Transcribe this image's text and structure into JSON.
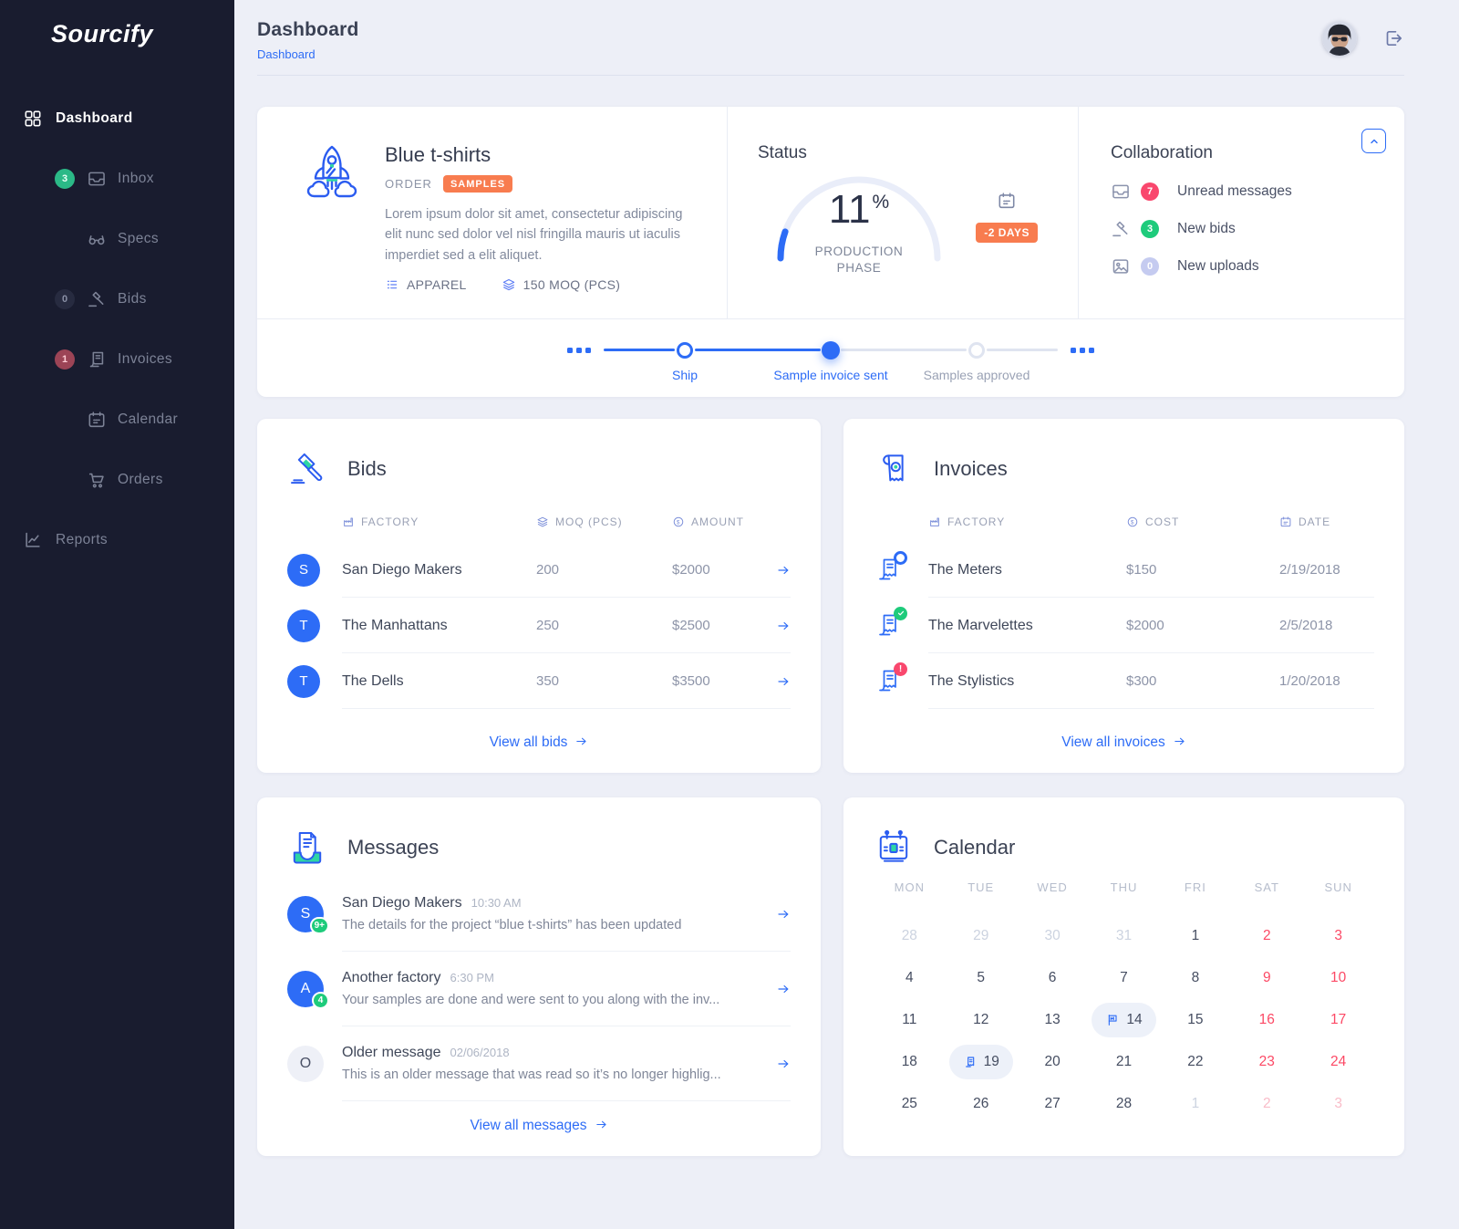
{
  "app": {
    "name": "Sourcify"
  },
  "header": {
    "title": "Dashboard",
    "breadcrumb": "Dashboard"
  },
  "sidebar": {
    "items": [
      {
        "label": "Dashboard",
        "icon": "grid",
        "active": true,
        "indent": false
      },
      {
        "label": "Inbox",
        "icon": "inbox",
        "indent": true,
        "badge": {
          "text": "3",
          "style": "green"
        }
      },
      {
        "label": "Specs",
        "icon": "specs",
        "indent": true
      },
      {
        "label": "Bids",
        "icon": "gavel",
        "indent": true,
        "badge": {
          "text": "0",
          "style": "dim"
        }
      },
      {
        "label": "Invoices",
        "icon": "invoice",
        "indent": true,
        "badge": {
          "text": "1",
          "style": "red"
        }
      },
      {
        "label": "Calendar",
        "icon": "calendar",
        "indent": true
      },
      {
        "label": "Orders",
        "icon": "cart",
        "indent": true
      },
      {
        "label": "Reports",
        "icon": "chart",
        "indent": false
      }
    ]
  },
  "order": {
    "title": "Blue t-shirts",
    "type_label": "ORDER",
    "stage_badge": "SAMPLES",
    "description": "Lorem ipsum dolor sit amet, consectetur adipiscing elit nunc sed dolor vel nisl fringilla mauris ut iaculis imperdiet sed a elit aliquet.",
    "category": "APPAREL",
    "moq": "150 MOQ (PCS)"
  },
  "status": {
    "heading": "Status",
    "percent": 11,
    "percent_label": "11",
    "percent_sign": "%",
    "phase": "PRODUCTION PHASE",
    "days_badge": "-2 DAYS"
  },
  "collaboration": {
    "heading": "Collaboration",
    "items": [
      {
        "icon": "inbox",
        "count": "7",
        "style": "red",
        "label": "Unread messages"
      },
      {
        "icon": "gavel",
        "count": "3",
        "style": "green",
        "label": "New bids"
      },
      {
        "icon": "image",
        "count": "0",
        "style": "purple",
        "label": "New uploads"
      }
    ]
  },
  "timeline": {
    "steps": [
      {
        "label": "Ship",
        "state": "done"
      },
      {
        "label": "Sample invoice sent",
        "state": "current"
      },
      {
        "label": "Samples approved",
        "state": "upcoming"
      }
    ]
  },
  "bids": {
    "title": "Bids",
    "headers": [
      {
        "label": "FACTORY",
        "icon": "factory"
      },
      {
        "label": "MOQ (PCS)",
        "icon": "layers"
      },
      {
        "label": "AMOUNT",
        "icon": "coin"
      }
    ],
    "rows": [
      {
        "initial": "S",
        "name": "San Diego Makers",
        "moq": "200",
        "amount": "$2000"
      },
      {
        "initial": "T",
        "name": "The Manhattans",
        "moq": "250",
        "amount": "$2500"
      },
      {
        "initial": "T",
        "name": "The Dells",
        "moq": "350",
        "amount": "$3500"
      }
    ],
    "view_all": "View all bids"
  },
  "invoices": {
    "title": "Invoices",
    "headers": [
      {
        "label": "FACTORY",
        "icon": "factory"
      },
      {
        "label": "COST",
        "icon": "coin"
      },
      {
        "label": "DATE",
        "icon": "calendar"
      }
    ],
    "rows": [
      {
        "name": "The Meters",
        "cost": "$150",
        "date": "2/19/2018",
        "status": "pending"
      },
      {
        "name": "The Marvelettes",
        "cost": "$2000",
        "date": "2/5/2018",
        "status": "approved"
      },
      {
        "name": "The Stylistics",
        "cost": "$300",
        "date": "1/20/2018",
        "status": "alert"
      }
    ],
    "view_all": "View all invoices"
  },
  "messages": {
    "title": "Messages",
    "rows": [
      {
        "initial": "S",
        "badge": "9+",
        "unread": true,
        "name": "San Diego Makers",
        "time": "10:30 AM",
        "preview": "The details for the project “blue t-shirts” has been updated"
      },
      {
        "initial": "A",
        "badge": "4",
        "unread": true,
        "name": "Another factory",
        "time": "6:30 PM",
        "preview": "Your samples are done and were sent to you along with the inv..."
      },
      {
        "initial": "O",
        "badge": null,
        "unread": false,
        "name": "Older message",
        "time": "02/06/2018",
        "preview": "This is an older message that was read so it’s no longer highlig..."
      }
    ],
    "view_all": "View all messages"
  },
  "calendar": {
    "title": "Calendar",
    "weekdays": [
      "MON",
      "TUE",
      "WED",
      "THU",
      "FRI",
      "SAT",
      "SUN"
    ],
    "weeks": [
      [
        {
          "d": "28",
          "cls": "muted"
        },
        {
          "d": "29",
          "cls": "muted"
        },
        {
          "d": "30",
          "cls": "muted"
        },
        {
          "d": "31",
          "cls": "muted"
        },
        {
          "d": "1",
          "cls": "normal"
        },
        {
          "d": "2",
          "cls": "weekend"
        },
        {
          "d": "3",
          "cls": "weekend"
        }
      ],
      [
        {
          "d": "4",
          "cls": "normal"
        },
        {
          "d": "5",
          "cls": "normal"
        },
        {
          "d": "6",
          "cls": "normal"
        },
        {
          "d": "7",
          "cls": "normal"
        },
        {
          "d": "8",
          "cls": "normal"
        },
        {
          "d": "9",
          "cls": "weekend"
        },
        {
          "d": "10",
          "cls": "weekend"
        }
      ],
      [
        {
          "d": "11",
          "cls": "normal"
        },
        {
          "d": "12",
          "cls": "normal"
        },
        {
          "d": "13",
          "cls": "normal"
        },
        {
          "d": "14",
          "cls": "normal",
          "icon": "factory-sm",
          "pill": true
        },
        {
          "d": "15",
          "cls": "normal"
        },
        {
          "d": "16",
          "cls": "weekend"
        },
        {
          "d": "17",
          "cls": "weekend"
        }
      ],
      [
        {
          "d": "18",
          "cls": "normal"
        },
        {
          "d": "19",
          "cls": "normal",
          "icon": "invoice-sm",
          "pill": true
        },
        {
          "d": "20",
          "cls": "normal"
        },
        {
          "d": "21",
          "cls": "normal"
        },
        {
          "d": "22",
          "cls": "normal"
        },
        {
          "d": "23",
          "cls": "weekend"
        },
        {
          "d": "24",
          "cls": "weekend"
        }
      ],
      [
        {
          "d": "25",
          "cls": "normal"
        },
        {
          "d": "26",
          "cls": "normal"
        },
        {
          "d": "27",
          "cls": "normal"
        },
        {
          "d": "28",
          "cls": "normal"
        },
        {
          "d": "1",
          "cls": "muted"
        },
        {
          "d": "2",
          "cls": "muted-weekend"
        },
        {
          "d": "3",
          "cls": "muted-weekend"
        }
      ]
    ]
  },
  "colors": {
    "accent": "#2d6cf6",
    "orange": "#f87c4f",
    "red": "#f9476d",
    "green": "#1ecb7b",
    "purple_badge": "#c5cbf0",
    "weekend_red": "#fc4965",
    "sidebar_bg": "#191c2f"
  }
}
